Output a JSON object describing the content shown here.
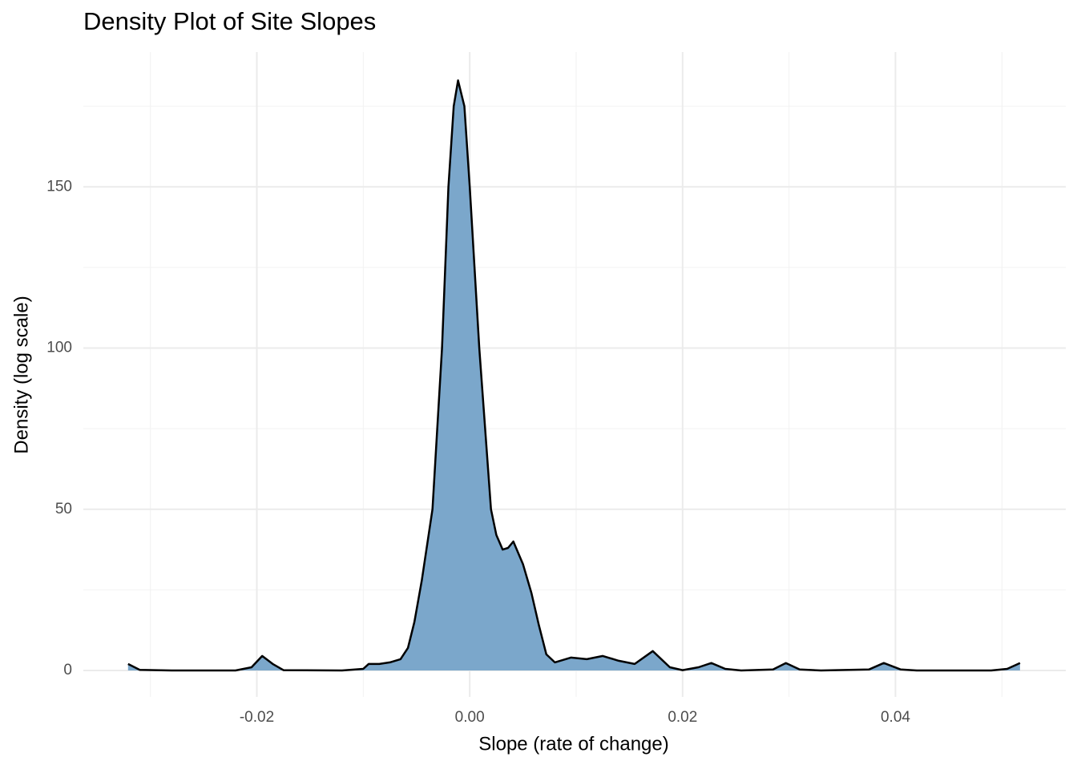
{
  "chart_data": {
    "type": "area",
    "title": "Density Plot of Site Slopes",
    "x_label": "Slope (rate of change)",
    "y_label": "Density (log scale)",
    "x": [
      -0.0321,
      -0.031,
      -0.028,
      -0.022,
      -0.0205,
      -0.0195,
      -0.0185,
      -0.0175,
      -0.012,
      -0.01,
      -0.0095,
      -0.0085,
      -0.0075,
      -0.0065,
      -0.0058,
      -0.0052,
      -0.0045,
      -0.0035,
      -0.0026,
      -0.002,
      -0.0015,
      -0.0011,
      -0.0005,
      0,
      0.0009,
      0.002,
      0.0025,
      0.0031,
      0.0036,
      0.0041,
      0.005,
      0.0058,
      0.0065,
      0.0072,
      0.008,
      0.0095,
      0.011,
      0.0125,
      0.014,
      0.0155,
      0.0172,
      0.0188,
      0.02,
      0.0215,
      0.0227,
      0.024,
      0.0255,
      0.0285,
      0.0297,
      0.031,
      0.033,
      0.0375,
      0.0389,
      0.0405,
      0.042,
      0.049,
      0.0505,
      0.0517
    ],
    "y": [
      2,
      0.2,
      0,
      0,
      1,
      4.5,
      2,
      0.1,
      0,
      0.5,
      2,
      2,
      2.5,
      3.5,
      7,
      15,
      28,
      50,
      100,
      150,
      175,
      183,
      175,
      150,
      100,
      50,
      42,
      37.5,
      38,
      40,
      33,
      24,
      14,
      5,
      2.5,
      4,
      3.5,
      4.5,
      3,
      2,
      6,
      1,
      0.1,
      1,
      2.3,
      0.5,
      0,
      0.3,
      2.3,
      0.3,
      0,
      0.3,
      2.3,
      0.3,
      0,
      0,
      0.5,
      2.3
    ],
    "color": "#7ba7cb",
    "line_color": "#000000",
    "xlim": [
      -0.0363,
      0.056
    ],
    "ylim": [
      -8.2,
      191.8
    ],
    "xticks": [
      -0.02,
      {
        "value": 0,
        "label": "0.00"
      },
      0.02,
      0.04
    ],
    "yticks": [
      0,
      50,
      100,
      150
    ],
    "x_minor_ticks": [
      -0.03,
      -0.01,
      0.01,
      0.03,
      0.05
    ],
    "y_minor_ticks": [
      25,
      75,
      125,
      175
    ],
    "grid": true
  }
}
